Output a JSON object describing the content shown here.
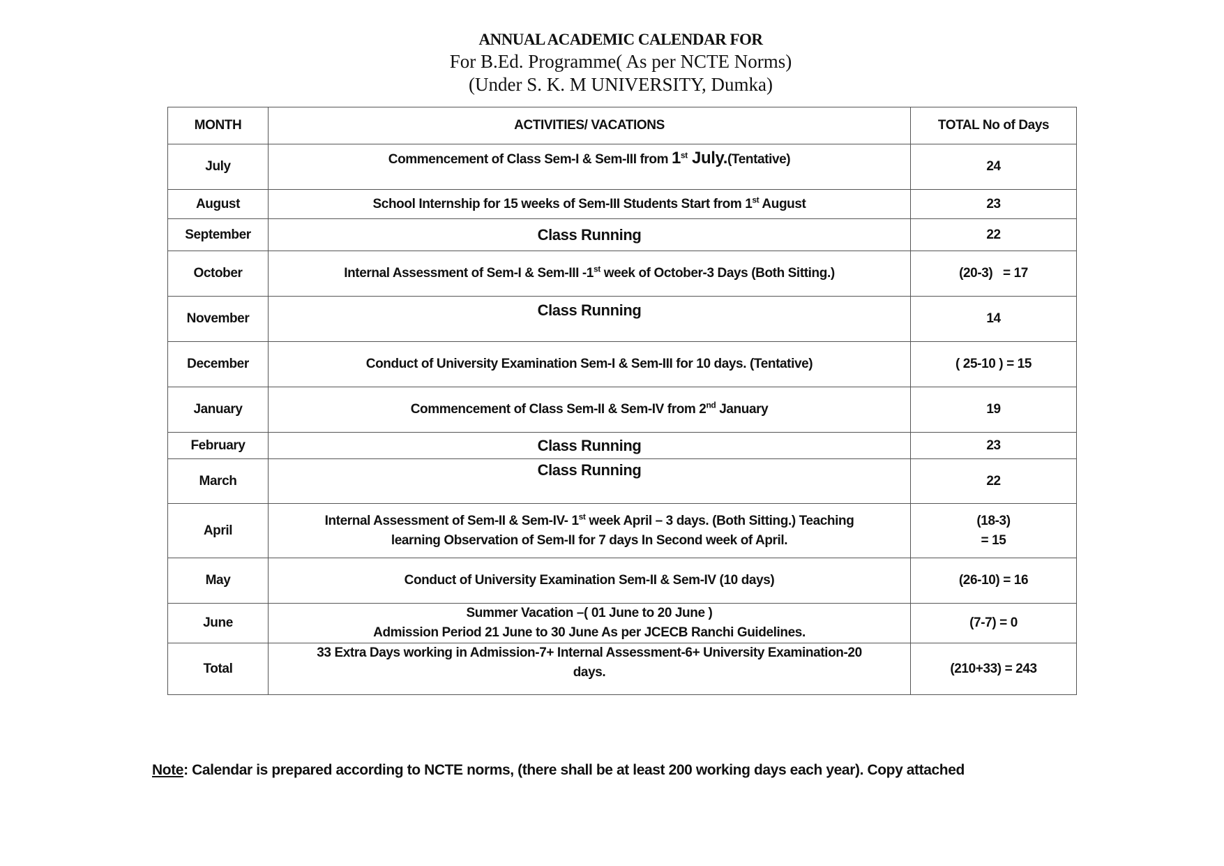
{
  "header": {
    "title": "ANNUAL ACADEMIC CALENDAR FOR",
    "subtitle": "For B.Ed. Programme( As per NCTE  Norms)",
    "university": "(Under S. K. M UNIVERSITY, Dumka)"
  },
  "table": {
    "columns": [
      "MONTH",
      "ACTIVITIES/ VACATIONS",
      "TOTAL No of Days"
    ],
    "rows": [
      {
        "month": "July",
        "activity_a": "Commencement of Class Sem-I & Sem-III from ",
        "activity_num": "1",
        "activity_sup": "st",
        "activity_b": " July.",
        "activity_c": "(Tentative)",
        "days": "24"
      },
      {
        "month": "August",
        "activity_a": "School Internship for 15 weeks of Sem-III Students Start from 1",
        "activity_sup": "st",
        "activity_b": " August",
        "days": "23"
      },
      {
        "month": "September",
        "activity": "Class Running",
        "days": "22"
      },
      {
        "month": "October",
        "activity_a": "Internal Assessment of Sem-I & Sem-III -1",
        "activity_sup": "st",
        "activity_b": " week of October-3 Days (Both Sitting.)",
        "days": "(20-3)   = 17"
      },
      {
        "month": "November",
        "activity": "Class Running",
        "days": "14"
      },
      {
        "month": "December",
        "activity": "Conduct of University Examination Sem-I & Sem-III for 10 days. (Tentative)",
        "days": "( 25-10 ) = 15"
      },
      {
        "month": "January",
        "activity_a": "Commencement of Class Sem-II & Sem-IV from 2",
        "activity_sup": "nd",
        "activity_b": " January",
        "days": "19"
      },
      {
        "month": "February",
        "activity": "Class Running",
        "days": "23"
      },
      {
        "month": "March",
        "activity": "Class Running",
        "days": "22"
      },
      {
        "month": "April",
        "activity_a": "Internal Assessment of Sem-II & Sem-IV- 1",
        "activity_sup": "st",
        "activity_b": " week April – 3 days. (Both Sitting.)  Teaching",
        "activity_line2": "learning Observation of  Sem-II for 7 days In Second week of April.",
        "days": "(18-3)",
        "days_line2": "=  15"
      },
      {
        "month": "May",
        "activity": "Conduct of University Examination Sem-II & Sem-IV (10 days)",
        "days": "(26-10) = 16"
      },
      {
        "month": "June",
        "activity": "Summer Vacation –( 01 June  to 20 June )",
        "activity_line2": "Admission Period  21 June to 30 June As per JCECB Ranchi Guidelines.",
        "days": "(7-7) = 0"
      },
      {
        "month": "Total",
        "activity": "33 Extra Days working in Admission-7+ Internal Assessment-6+ University Examination-20",
        "activity_line2": "days.",
        "days": "(210+33) = 243"
      }
    ]
  },
  "note": {
    "label": "Note",
    "text": ": Calendar is prepared according to NCTE norms, (there shall be at least 200 working days each year). Copy attached"
  }
}
